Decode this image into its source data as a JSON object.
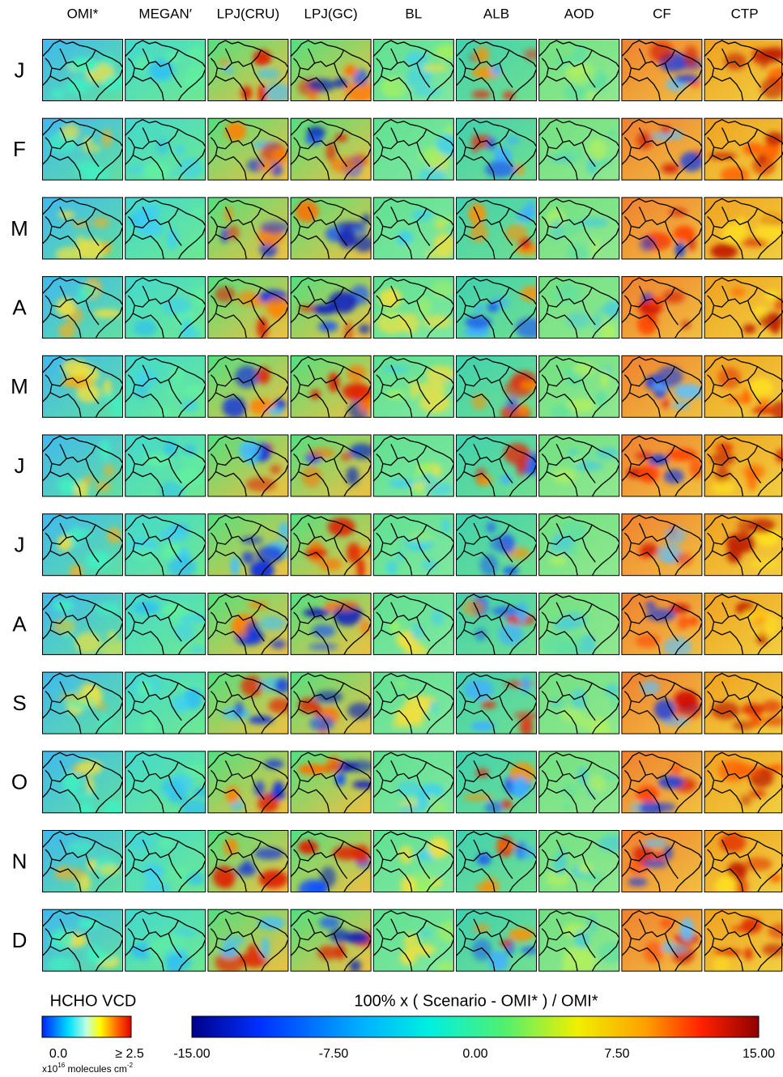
{
  "columns": [
    "OMI*",
    "MEGAN′",
    "LPJ(CRU)",
    "LPJ(GC)",
    "BL",
    "ALB",
    "AOD",
    "CF",
    "CTP"
  ],
  "rows": [
    "J",
    "F",
    "M",
    "A",
    "M",
    "J",
    "J",
    "A",
    "S",
    "O",
    "N",
    "D"
  ],
  "legend_vcd": {
    "title": "HCHO VCD",
    "range": [
      0,
      2.5
    ],
    "ticks": [
      {
        "value": 0,
        "label": "0.0"
      },
      {
        "value": 2.5,
        "label": "≥ 2.5"
      }
    ],
    "unit": {
      "base": "x10",
      "exponent": "16",
      "text": " molecules cm",
      "exponent2": "-2"
    }
  },
  "legend_diff": {
    "title": "100% x ( Scenario - OMI* ) / OMI*",
    "range": [
      -15,
      15
    ],
    "ticks": [
      {
        "value": -15,
        "label": "-15.00"
      },
      {
        "value": -7.5,
        "label": "-7.50"
      },
      {
        "value": 0,
        "label": "0.00"
      },
      {
        "value": 7.5,
        "label": "7.50"
      },
      {
        "value": 15,
        "label": "15.00"
      }
    ]
  }
}
